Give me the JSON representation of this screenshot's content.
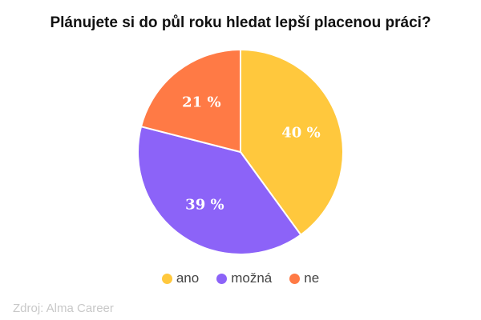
{
  "chart_data": {
    "type": "pie",
    "title": "Plánujete si do půl roku hledat lepší placenou práci?",
    "categories": [
      "ano",
      "možná",
      "ne"
    ],
    "values": [
      40,
      39,
      21
    ],
    "labels": [
      "40 %",
      "39 %",
      "21 %"
    ],
    "colors": [
      "#FFC83D",
      "#8C63F8",
      "#FF7A45"
    ],
    "legend_position": "bottom",
    "source": "Zdroj: Alma Career"
  }
}
